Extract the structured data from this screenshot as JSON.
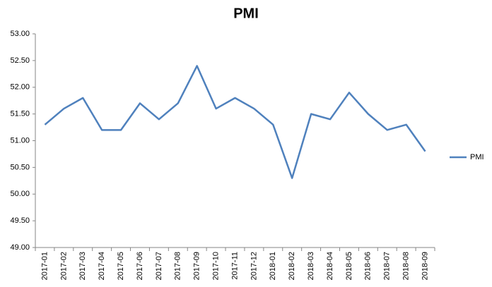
{
  "chart_data": {
    "type": "line",
    "title": "PMI",
    "categories": [
      "2017-01",
      "2017-02",
      "2017-03",
      "2017-04",
      "2017-05",
      "2017-06",
      "2017-07",
      "2017-08",
      "2017-09",
      "2017-10",
      "2017-11",
      "2017-12",
      "2018-01",
      "2018-02",
      "2018-03",
      "2018-04",
      "2018-05",
      "2018-06",
      "2018-07",
      "2018-08",
      "2018-09"
    ],
    "series": [
      {
        "name": "PMI",
        "color": "#4f81bd",
        "values": [
          51.3,
          51.6,
          51.8,
          51.2,
          51.2,
          51.7,
          51.4,
          51.7,
          52.4,
          51.6,
          51.8,
          51.6,
          51.3,
          50.3,
          51.5,
          51.4,
          51.9,
          51.5,
          51.2,
          51.3,
          50.8
        ]
      }
    ],
    "ylim": [
      49,
      53
    ],
    "yticks": [
      {
        "value": 49,
        "label": "49.00"
      },
      {
        "value": 49.5,
        "label": "49.50"
      },
      {
        "value": 50,
        "label": "50.00"
      },
      {
        "value": 50.5,
        "label": "50.50"
      },
      {
        "value": 51,
        "label": "51.00"
      },
      {
        "value": 51.5,
        "label": "51.50"
      },
      {
        "value": 52,
        "label": "52.00"
      },
      {
        "value": 52.5,
        "label": "52.50"
      },
      {
        "value": 53,
        "label": "53.00"
      }
    ],
    "grid": false,
    "legend": "right"
  }
}
